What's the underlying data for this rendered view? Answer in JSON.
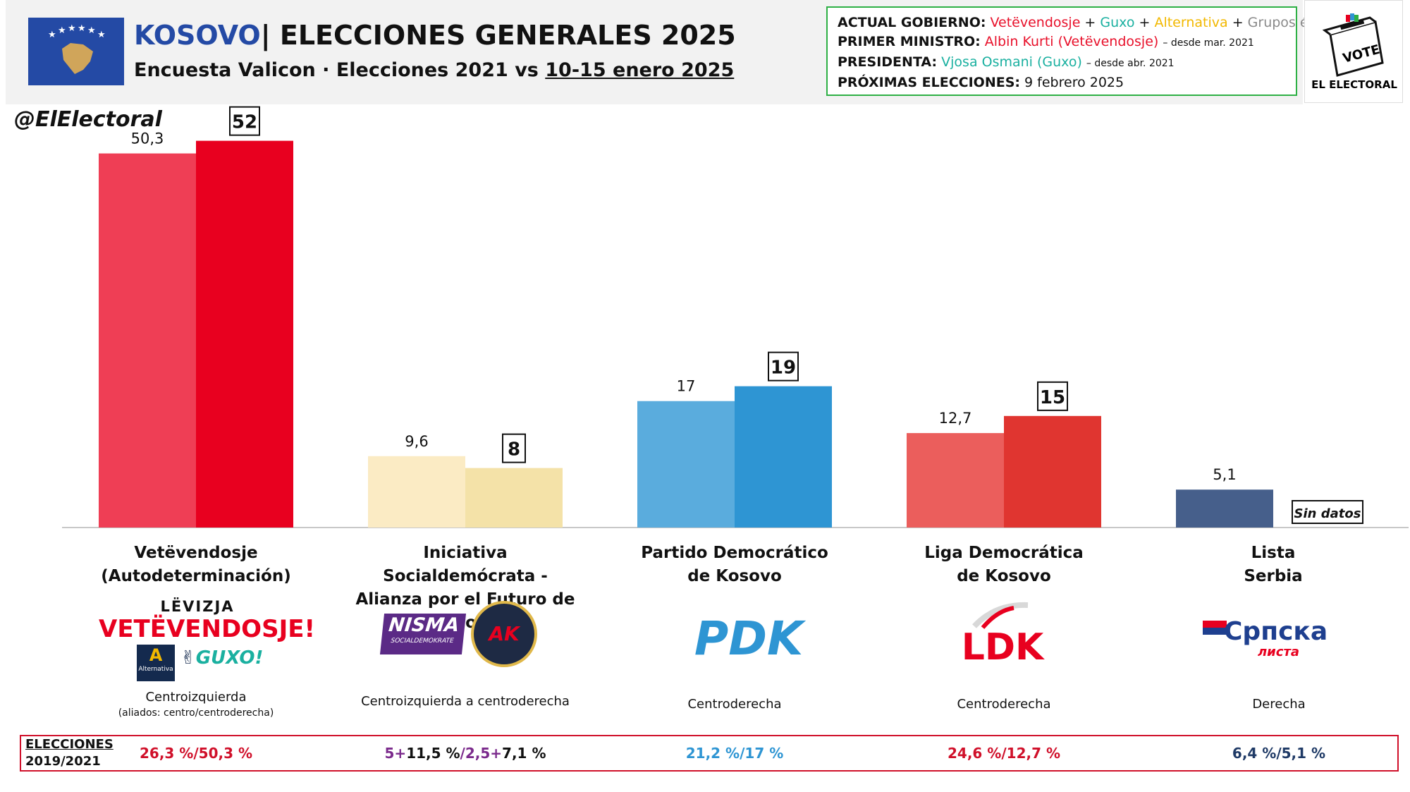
{
  "header": {
    "country": "KOSOVO",
    "separator": "|",
    "title": "ELECCIONES GENERALES 2025",
    "pollster": "Encuesta Valicon",
    "dot": "·",
    "comparison": "Elecciones 2021 vs",
    "fieldwork": "10-15 enero 2025"
  },
  "infobox": {
    "gov_label": "ACTUAL GOBIERNO:",
    "gov_parties": [
      {
        "text": "Vetëvendosje",
        "color": "#e8102a"
      },
      {
        "text": " + ",
        "color": "#111111"
      },
      {
        "text": "Guxo",
        "color": "#1ab0a0"
      },
      {
        "text": " + ",
        "color": "#111111"
      },
      {
        "text": "Alternativa",
        "color": "#f2b800"
      },
      {
        "text": " + ",
        "color": "#111111"
      },
      {
        "text": "Grupos étnicos",
        "color": "#8a8a8a"
      }
    ],
    "pm_label": "PRIMER MINISTRO:",
    "pm_value": "Albin Kurti (Vetëvendosje)",
    "pm_since": "– desde mar. 2021",
    "pres_label": "PRESIDENTA:",
    "pres_value": "Vjosa Osmani (Guxo)",
    "pres_since": "– desde abr. 2021",
    "next_label": "PRÓXIMAS ELECCIONES:",
    "next_value": "9 febrero 2025"
  },
  "vote_logo": {
    "box_text": "VOTE",
    "name": "EL ELECTORAL"
  },
  "handle": "@ElElectoral",
  "chart_data": {
    "type": "bar",
    "categories": [
      "Vetëvendosje (Autodeterminación)",
      "Iniciativa Socialdemócrata - Alianza por el Futuro de Kosovo",
      "Partido Democrático de Kosovo",
      "Liga Democrática de Kosovo",
      "Lista Serbia"
    ],
    "category_lines": [
      [
        "Vetëvendosje",
        "(Autodeterminación)"
      ],
      [
        "Iniciativa Socialdemócrata -",
        "Alianza por el Futuro de Kosovo"
      ],
      [
        "Partido Democrático",
        "de Kosovo"
      ],
      [
        "Liga Democrática",
        "de Kosovo"
      ],
      [
        "Lista",
        "Serbia"
      ]
    ],
    "series": [
      {
        "values": [
          50.3,
          9.6,
          17,
          12.7,
          5.1
        ],
        "labels": [
          "50,3",
          "9,6",
          "17",
          "12,7",
          "5,1"
        ]
      },
      {
        "values": [
          52,
          8,
          19,
          15,
          null
        ],
        "labels": [
          "52",
          "8",
          "19",
          "15",
          "Sin datos"
        ]
      }
    ],
    "colors_2021": [
      "#ef3e55",
      "#fbebc4",
      "#5aacdd",
      "#eb5e5c",
      "#465f8b"
    ],
    "colors_2025": [
      "#e8001f",
      "#f4e2a8",
      "#2e95d3",
      "#e03530",
      null
    ],
    "ylim": [
      0,
      55
    ]
  },
  "logos": {
    "vv_top": "LËVIZJA",
    "vv_main": "VETËVENDOSJE!",
    "alternativa": "A",
    "alternativa_name": "Alternativa",
    "guxo": "GUXO!",
    "nisma": "NISMA",
    "nisma_sub": "SOCIALDEMOKRATE",
    "aak": "AK",
    "pdk": "PDK",
    "ldk": "LDK",
    "srpska_main": "Српска",
    "srpska_sub": "листа"
  },
  "orientation": [
    {
      "text": "Centroizquierda",
      "sub": "(aliados: centro/centroderecha)"
    },
    {
      "text": "Centroizquierda  a centroderecha",
      "sub": ""
    },
    {
      "text": "Centroderecha",
      "sub": ""
    },
    {
      "text": "Centroderecha",
      "sub": ""
    },
    {
      "text": "Derecha",
      "sub": ""
    }
  ],
  "previous": {
    "title_line1": "ELECCIONES",
    "title_line2": "2019/2021",
    "results": [
      [
        {
          "text": "26,3 %/50,3 %",
          "color": "#d0102a"
        }
      ],
      [
        {
          "text": "5+",
          "color": "#7b2a8c"
        },
        {
          "text": "11,5 %",
          "color": "#111111"
        },
        {
          "text": "/",
          "color": "#7b2a8c"
        },
        {
          "text": "2,5+",
          "color": "#7b2a8c"
        },
        {
          "text": "7,1 %",
          "color": "#111111"
        }
      ],
      [
        {
          "text": "21,2 %/17 %",
          "color": "#2e95d3"
        }
      ],
      [
        {
          "text": "24,6 %/12,7 %",
          "color": "#d0102a"
        }
      ],
      [
        {
          "text": "6,4 %/5,1 %",
          "color": "#1f3a66"
        }
      ]
    ]
  }
}
